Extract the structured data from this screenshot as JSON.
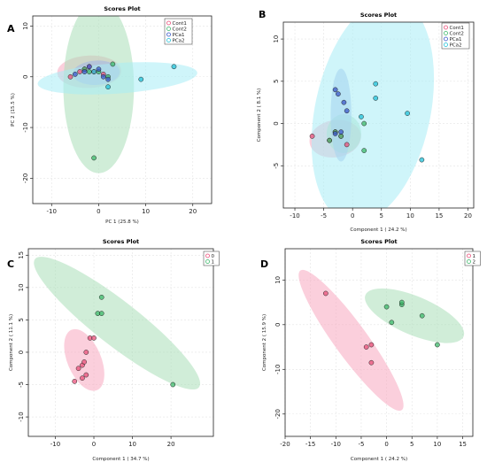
{
  "chart_data": [
    {
      "panel": "A",
      "type": "scatter",
      "title": "Scores Plot",
      "xlabel": "PC 1 (25.8 %)",
      "ylabel": "PC 2 (15.5 %)",
      "xlim": [
        -14,
        24
      ],
      "ylim": [
        -25,
        12
      ],
      "xticks": [
        -10,
        0,
        10,
        20
      ],
      "yticks": [
        -20,
        -10,
        0,
        10
      ],
      "legend_position": "top-right",
      "series": [
        {
          "name": "Cont1",
          "color": "#e8507a",
          "fill": "#f7a8c0",
          "ellipse": {
            "cx": -2,
            "cy": 1,
            "rx": 6.8,
            "ry": 3.2,
            "angle": 2
          },
          "points": [
            [
              -6,
              0
            ],
            [
              -4,
              1
            ],
            [
              -2,
              2
            ],
            [
              -3,
              1.5
            ],
            [
              1,
              0.5
            ],
            [
              -1,
              1
            ]
          ]
        },
        {
          "name": "Cont2",
          "color": "#3cb86a",
          "fill": "#a9dfb8",
          "ellipse": {
            "cx": 0,
            "cy": -2,
            "rx": 7.5,
            "ry": 17,
            "angle": 0
          },
          "points": [
            [
              -1,
              -16
            ],
            [
              3,
              2.5
            ],
            [
              -2,
              1
            ],
            [
              0,
              1
            ],
            [
              -3,
              1.5
            ],
            [
              2,
              0
            ]
          ]
        },
        {
          "name": "PCa1",
          "color": "#3a57c8",
          "fill": "#a0b4e8",
          "ellipse": {
            "cx": -0.5,
            "cy": 0.8,
            "rx": 5,
            "ry": 2.4,
            "angle": 3
          },
          "points": [
            [
              -5,
              0.5
            ],
            [
              -2,
              2
            ],
            [
              0,
              1.5
            ],
            [
              1,
              0
            ],
            [
              -3,
              1
            ],
            [
              2,
              -0.5
            ]
          ]
        },
        {
          "name": "PCa2",
          "color": "#20c0d8",
          "fill": "#a8ecf5",
          "ellipse": {
            "cx": 4,
            "cy": -0.3,
            "rx": 17,
            "ry": 3,
            "angle": 4
          },
          "points": [
            [
              16,
              2
            ],
            [
              9,
              -0.5
            ],
            [
              2,
              -2
            ],
            [
              -1,
              1
            ]
          ]
        }
      ]
    },
    {
      "panel": "B",
      "type": "scatter",
      "title": "Scores Plot",
      "xlabel": "Component 1 ( 24.2 %)",
      "ylabel": "Component 2 ( 8.1 %)",
      "xlim": [
        -12,
        21
      ],
      "ylim": [
        -10,
        12
      ],
      "xticks": [
        -10,
        -5,
        0,
        5,
        10,
        15,
        20
      ],
      "yticks": [
        -5,
        0,
        5,
        10
      ],
      "legend_position": "top-right",
      "series": [
        {
          "name": "Cont1",
          "color": "#e8507a",
          "fill": "#f7a8c0",
          "ellipse": {
            "cx": -3,
            "cy": -1.8,
            "rx": 4.5,
            "ry": 2.2,
            "angle": 10
          },
          "points": [
            [
              -7,
              -1.5
            ],
            [
              -4,
              -2
            ],
            [
              -2,
              -1.5
            ],
            [
              -1,
              -2.5
            ],
            [
              -3,
              -1
            ]
          ]
        },
        {
          "name": "Cont2",
          "color": "#3cb86a",
          "fill": "#a9dfb8",
          "ellipse": {
            "cx": -1.5,
            "cy": -1.2,
            "rx": 3,
            "ry": 2.3,
            "angle": 0
          },
          "points": [
            [
              -3,
              -1
            ],
            [
              -2,
              -1.5
            ],
            [
              2,
              0
            ],
            [
              2,
              -3.2
            ],
            [
              -4,
              -2
            ]
          ]
        },
        {
          "name": "PCa1",
          "color": "#3a57c8",
          "fill": "#a0b4e8",
          "ellipse": {
            "cx": -2,
            "cy": 1,
            "rx": 1.8,
            "ry": 5.5,
            "angle": 0
          },
          "points": [
            [
              -3,
              4
            ],
            [
              -1.5,
              2.5
            ],
            [
              -2,
              -1
            ],
            [
              -2.5,
              3.5
            ],
            [
              -1,
              1.5
            ],
            [
              -3,
              -1.2
            ]
          ]
        },
        {
          "name": "PCa2",
          "color": "#20c0d8",
          "fill": "#a8ecf5",
          "ellipse": {
            "cx": 3.5,
            "cy": 1.5,
            "rx": 10,
            "ry": 13.5,
            "angle": -12
          },
          "points": [
            [
              4,
              4.7
            ],
            [
              4,
              3
            ],
            [
              9.5,
              1.2
            ],
            [
              12,
              -4.3
            ],
            [
              1.5,
              0.8
            ]
          ]
        }
      ]
    },
    {
      "panel": "C",
      "type": "scatter",
      "title": "Scores Plot",
      "xlabel": "Component 1 ( 34.7 %)",
      "ylabel": "Component 2 ( 11.1 %)",
      "xlim": [
        -17,
        31
      ],
      "ylim": [
        -13,
        16
      ],
      "xticks": [
        -10,
        0,
        10,
        20
      ],
      "yticks": [
        -10,
        -5,
        0,
        5,
        10,
        15
      ],
      "legend_position": "top-right",
      "series": [
        {
          "name": "0",
          "color": "#e8507a",
          "fill": "#f7a8c0",
          "ellipse": {
            "cx": -2.5,
            "cy": -1.2,
            "rx": 8.5,
            "ry": 2.6,
            "angle": -67
          },
          "points": [
            [
              -4,
              -2.5
            ],
            [
              -3,
              -2
            ],
            [
              -2,
              -3.5
            ],
            [
              -1,
              2.2
            ],
            [
              0,
              2.2
            ],
            [
              -2,
              0
            ],
            [
              -3,
              -4
            ],
            [
              -2.5,
              -1.5
            ],
            [
              -5,
              -4.5
            ]
          ]
        },
        {
          "name": "1",
          "color": "#3cb86a",
          "fill": "#a9dfb8",
          "ellipse": {
            "cx": 6,
            "cy": 4.5,
            "rx": 27,
            "ry": 3.4,
            "angle": -38
          },
          "points": [
            [
              2,
              8.5
            ],
            [
              1,
              6
            ],
            [
              2,
              6
            ],
            [
              20.5,
              -5
            ]
          ]
        }
      ]
    },
    {
      "panel": "D",
      "type": "scatter",
      "title": "Scores Plot",
      "xlabel": "Component 1 ( 24.2 %)",
      "ylabel": "Component 2 ( 15.9 %)",
      "xlim": [
        -20,
        17
      ],
      "ylim": [
        -25,
        17
      ],
      "xticks": [
        -20,
        -15,
        -10,
        -5,
        0,
        5,
        10,
        15
      ],
      "yticks": [
        -20,
        -10,
        0,
        10
      ],
      "legend_position": "top-right",
      "series": [
        {
          "name": "1",
          "color": "#e8507a",
          "fill": "#f7a8c0",
          "ellipse": {
            "cx": -7,
            "cy": -3.5,
            "rx": 17,
            "ry": 3.7,
            "angle": -54
          },
          "points": [
            [
              -12,
              7
            ],
            [
              -4,
              -5
            ],
            [
              -3,
              -4.5
            ],
            [
              -3,
              -8.5
            ]
          ]
        },
        {
          "name": "2",
          "color": "#3cb86a",
          "fill": "#a9dfb8",
          "ellipse": {
            "cx": 5.5,
            "cy": 2,
            "rx": 10.5,
            "ry": 4.3,
            "angle": -23
          },
          "points": [
            [
              0,
              4
            ],
            [
              1,
              0.5
            ],
            [
              3,
              4.5
            ],
            [
              3,
              5
            ],
            [
              7,
              2
            ],
            [
              10,
              -4.5
            ]
          ]
        }
      ]
    }
  ]
}
